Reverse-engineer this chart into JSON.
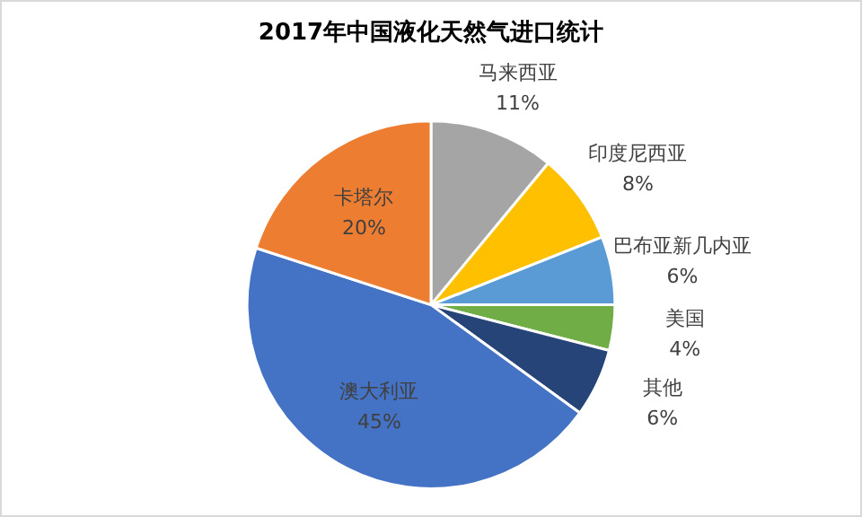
{
  "chart_data": {
    "type": "pie",
    "title": "2017年中国液化天然气进口统计",
    "categories": [
      "马来西亚",
      "印度尼西亚",
      "巴布亚新几内亚",
      "美国",
      "其他",
      "澳大利亚",
      "卡塔尔"
    ],
    "values": [
      11,
      8,
      6,
      4,
      6,
      45,
      20
    ],
    "colors": [
      "#a5a5a5",
      "#ffc000",
      "#5b9bd5",
      "#70ad47",
      "#264478",
      "#4472c4",
      "#ed7d31"
    ],
    "value_labels": [
      "11%",
      "8%",
      "6%",
      "4%",
      "6%",
      "45%",
      "20%"
    ],
    "legend": false
  }
}
